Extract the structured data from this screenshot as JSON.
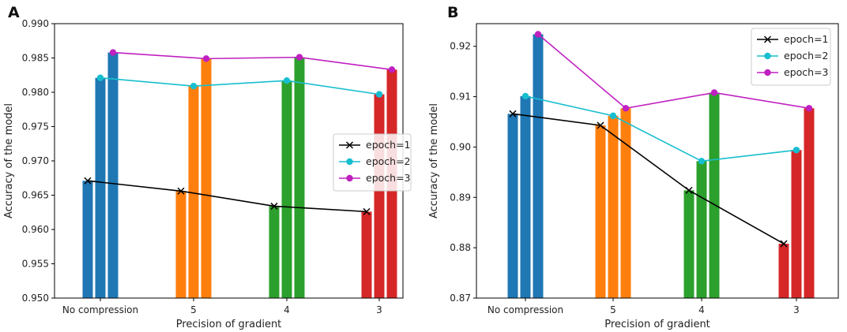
{
  "chart_data": [
    {
      "panel": "A",
      "type": "bar+line",
      "categories": [
        "No compression",
        "5",
        "4",
        "3"
      ],
      "category_colors": [
        "#1f77b4",
        "#ff7f0e",
        "#2ca02c",
        "#d62728"
      ],
      "xlabel": "Precision of gradient",
      "ylabel": "Accuracy of the model",
      "ylim": [
        0.95,
        0.99
      ],
      "yticks": [
        "0.950",
        "0.955",
        "0.960",
        "0.965",
        "0.970",
        "0.975",
        "0.980",
        "0.985",
        "0.990"
      ],
      "legend_position": "center-right",
      "series": [
        {
          "name": "epoch=1",
          "color": "#000000",
          "marker": "x",
          "values": [
            0.9671,
            0.9656,
            0.9634,
            0.9626
          ]
        },
        {
          "name": "epoch=2",
          "color": "#17becf",
          "marker": "o",
          "values": [
            0.9821,
            0.9809,
            0.9817,
            0.9797
          ]
        },
        {
          "name": "epoch=3",
          "color": "#c020c0",
          "marker": "o",
          "values": [
            0.9858,
            0.9849,
            0.9851,
            0.9833
          ]
        }
      ]
    },
    {
      "panel": "B",
      "type": "bar+line",
      "categories": [
        "No compression",
        "5",
        "4",
        "3"
      ],
      "category_colors": [
        "#1f77b4",
        "#ff7f0e",
        "#2ca02c",
        "#d62728"
      ],
      "xlabel": "Precision of gradient",
      "ylabel": "Accuracy of the model",
      "ylim": [
        0.87,
        0.9245
      ],
      "yticks": [
        "0.87",
        "0.88",
        "0.89",
        "0.90",
        "0.91",
        "0.92"
      ],
      "legend_position": "top-right",
      "series": [
        {
          "name": "epoch=1",
          "color": "#000000",
          "marker": "x",
          "values": [
            0.9066,
            0.9043,
            0.8914,
            0.8808
          ]
        },
        {
          "name": "epoch=2",
          "color": "#17becf",
          "marker": "o",
          "values": [
            0.9101,
            0.9062,
            0.8972,
            0.8994
          ]
        },
        {
          "name": "epoch=3",
          "color": "#c020c0",
          "marker": "o",
          "values": [
            0.9224,
            0.9077,
            0.9108,
            0.9077
          ]
        }
      ]
    }
  ]
}
